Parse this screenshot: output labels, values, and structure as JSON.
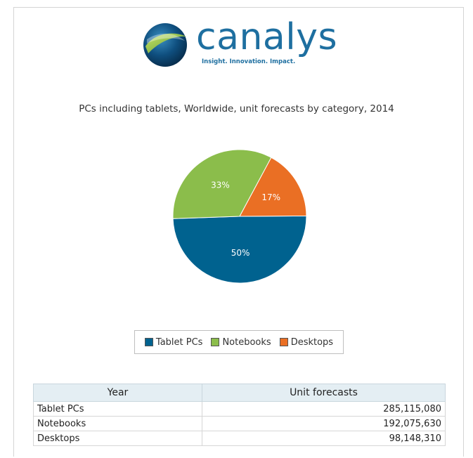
{
  "brand": {
    "name": "canalys",
    "tagline": "Insight. Innovation. Impact."
  },
  "colors": {
    "tablet": "#00628f",
    "notebook": "#8bbd4b",
    "desktop": "#ea6f24",
    "brand": "#1e6fa0"
  },
  "chart_data": {
    "type": "pie",
    "title": "PCs including tablets, Worldwide, unit forecasts by category, 2014",
    "slices": [
      {
        "label": "Tablet PCs",
        "value": 285115080,
        "percent_label": "50%",
        "color": "#00628f"
      },
      {
        "label": "Notebooks",
        "value": 192075630,
        "percent_label": "33%",
        "color": "#8bbd4b"
      },
      {
        "label": "Desktops",
        "value": 98148310,
        "percent_label": "17%",
        "color": "#ea6f24"
      }
    ],
    "legend_position": "bottom"
  },
  "table": {
    "headers": [
      "Year",
      "Unit forecasts"
    ],
    "rows": [
      {
        "category": "Tablet PCs",
        "value": "285,115,080"
      },
      {
        "category": "Notebooks",
        "value": "192,075,630"
      },
      {
        "category": "Desktops",
        "value": "98,148,310"
      }
    ]
  }
}
